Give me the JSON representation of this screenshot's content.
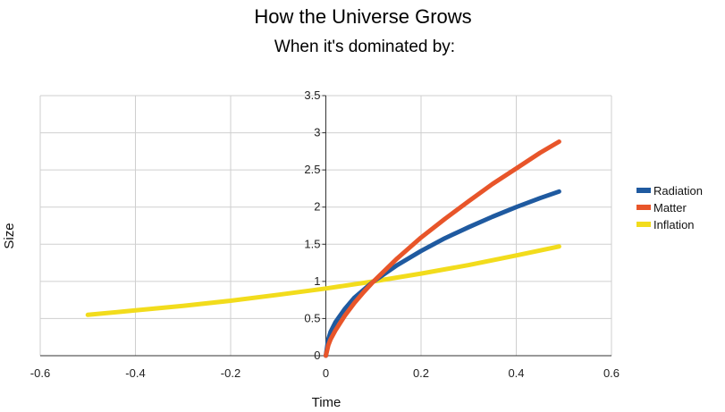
{
  "chart_data": {
    "type": "line",
    "title": "How the Universe Grows",
    "subtitle": "When it's dominated by:",
    "xlabel": "Time",
    "ylabel": "Size",
    "xlim": [
      -0.6,
      0.6
    ],
    "ylim": [
      0,
      3.5
    ],
    "x_ticks": [
      "-0.6",
      "-0.4",
      "-0.2",
      "0",
      "0.2",
      "0.4",
      "0.6"
    ],
    "y_ticks": [
      "0",
      "0.5",
      "1",
      "1.5",
      "2",
      "2.5",
      "3",
      "3.5"
    ],
    "grid": true,
    "legend_position": "right",
    "series": [
      {
        "name": "Radiation",
        "color": "#1f5aa0",
        "points": [
          [
            0,
            0
          ],
          [
            0.005,
            0.22
          ],
          [
            0.01,
            0.32
          ],
          [
            0.02,
            0.45
          ],
          [
            0.04,
            0.63
          ],
          [
            0.06,
            0.78
          ],
          [
            0.08,
            0.89
          ],
          [
            0.1,
            1.0
          ],
          [
            0.15,
            1.22
          ],
          [
            0.2,
            1.41
          ],
          [
            0.25,
            1.58
          ],
          [
            0.3,
            1.73
          ],
          [
            0.35,
            1.87
          ],
          [
            0.4,
            2.0
          ],
          [
            0.45,
            2.12
          ],
          [
            0.49,
            2.21
          ]
        ]
      },
      {
        "name": "Matter",
        "color": "#e8552a",
        "points": [
          [
            0,
            0
          ],
          [
            0.005,
            0.14
          ],
          [
            0.01,
            0.22
          ],
          [
            0.02,
            0.34
          ],
          [
            0.04,
            0.54
          ],
          [
            0.06,
            0.71
          ],
          [
            0.08,
            0.86
          ],
          [
            0.1,
            1.0
          ],
          [
            0.15,
            1.31
          ],
          [
            0.2,
            1.59
          ],
          [
            0.25,
            1.84
          ],
          [
            0.3,
            2.08
          ],
          [
            0.35,
            2.31
          ],
          [
            0.4,
            2.52
          ],
          [
            0.45,
            2.73
          ],
          [
            0.49,
            2.88
          ]
        ]
      },
      {
        "name": "Inflation",
        "color": "#f2dc1c",
        "points": [
          [
            -0.5,
            0.55
          ],
          [
            -0.4,
            0.61
          ],
          [
            -0.3,
            0.67
          ],
          [
            -0.2,
            0.74
          ],
          [
            -0.1,
            0.82
          ],
          [
            0,
            0.905
          ],
          [
            0.1,
            1.0
          ],
          [
            0.2,
            1.105
          ],
          [
            0.3,
            1.22
          ],
          [
            0.4,
            1.35
          ],
          [
            0.49,
            1.47
          ]
        ]
      }
    ]
  }
}
